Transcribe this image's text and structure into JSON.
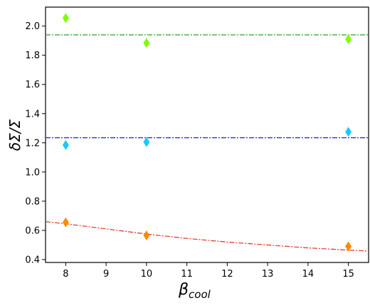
{
  "chart_data": {
    "type": "scatter",
    "title": "",
    "xlabel": "β",
    "xlabel_subscript": "cool",
    "ylabel": "δΣ/Σ",
    "xlim": [
      7.5,
      15.5
    ],
    "ylim": [
      0.38,
      2.13
    ],
    "xticks": [
      8,
      9,
      10,
      11,
      12,
      13,
      14,
      15
    ],
    "yticks": [
      "0.4",
      "0.6",
      "0.8",
      "1.0",
      "1.2",
      "1.4",
      "1.6",
      "1.8",
      "2.0"
    ],
    "grid": false,
    "legend": "none",
    "marker": "diamond",
    "series": [
      {
        "color": "#7fff00",
        "x": [
          8,
          10,
          15
        ],
        "y": [
          2.055,
          1.885,
          1.91
        ]
      },
      {
        "color": "#1ec8ff",
        "x": [
          8,
          10,
          15
        ],
        "y": [
          1.185,
          1.205,
          1.275
        ]
      },
      {
        "color": "#ff8c00",
        "x": [
          8,
          10,
          15
        ],
        "y": [
          0.655,
          0.565,
          0.49
        ]
      }
    ],
    "reference_lines": [
      {
        "kind": "horizontal",
        "y": 1.94,
        "color": "#2ca02c",
        "style": "dashdot"
      },
      {
        "kind": "horizontal",
        "y": 1.235,
        "color": "#1f1fff",
        "style": "dashdot"
      },
      {
        "kind": "curve",
        "color": "#e03020",
        "style": "dashdot",
        "x": [
          7.5,
          8,
          9,
          10,
          11,
          12,
          13,
          14,
          15,
          15.5
        ],
        "y": [
          0.66,
          0.645,
          0.61,
          0.575,
          0.545,
          0.52,
          0.5,
          0.48,
          0.465,
          0.458
        ]
      }
    ]
  }
}
